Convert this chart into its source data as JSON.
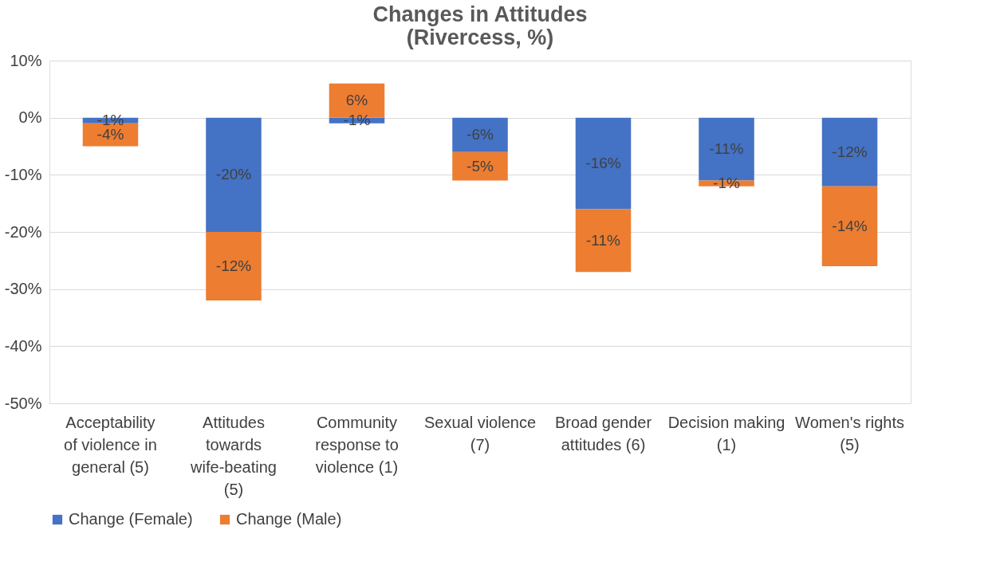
{
  "chart_data": {
    "type": "bar",
    "stacked": true,
    "title": "Changes in Attitudes\n(Rivercess, %)",
    "categories": [
      "Acceptability of violence in general  (5)",
      "Attitudes towards wife-beating  (5)",
      "Community response to violence  (1)",
      "Sexual violence  (7)",
      "Broad gender attitudes  (6)",
      "Decision making  (1)",
      "Women's rights  (5)"
    ],
    "series": [
      {
        "name": "Change (Female)",
        "color": "#4472c4",
        "values": [
          -1,
          -20,
          -1,
          -6,
          -16,
          -11,
          -12
        ],
        "value_labels": [
          "-1%",
          "-20%",
          "-1%",
          "-6%",
          "-16%",
          "-11%",
          "-12%"
        ]
      },
      {
        "name": "Change (Male)",
        "color": "#ed7d31",
        "values": [
          -4,
          -12,
          6,
          -5,
          -11,
          -1,
          -14
        ],
        "value_labels": [
          "-4%",
          "-12%",
          "6%",
          "-5%",
          "-11%",
          "-1%",
          "-14%"
        ]
      }
    ],
    "ylim": [
      -50,
      10
    ],
    "yticks": [
      {
        "value": 10,
        "label": "10%"
      },
      {
        "value": 0,
        "label": "0%"
      },
      {
        "value": -10,
        "label": "-10%"
      },
      {
        "value": -20,
        "label": "-20%"
      },
      {
        "value": -30,
        "label": "-30%"
      },
      {
        "value": -40,
        "label": "-40%"
      },
      {
        "value": -50,
        "label": "-50%"
      }
    ],
    "grid": "y",
    "legend": "bottom"
  }
}
